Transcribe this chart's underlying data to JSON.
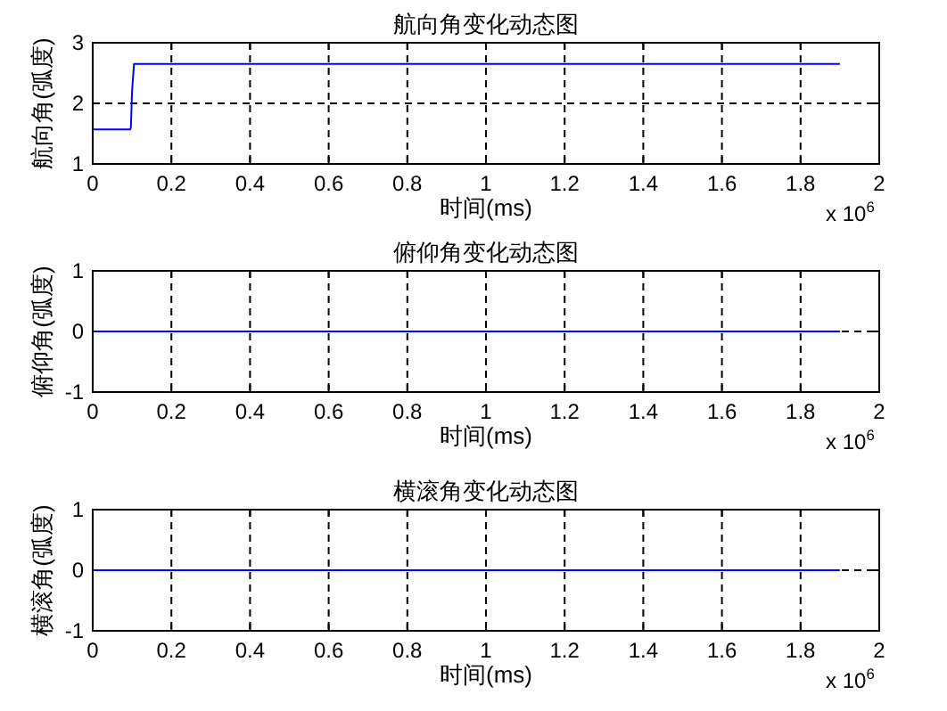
{
  "chart_data": [
    {
      "type": "line",
      "title": "航向角变化动态图",
      "xlabel": "时间(ms)",
      "ylabel": "航向角(弧度)",
      "annotations": [
        "x 10$^{6}$"
      ],
      "xlim": [
        0,
        2
      ],
      "xticks": [
        0,
        0.2,
        0.4,
        0.6,
        0.8,
        1,
        1.2,
        1.4,
        1.6,
        1.8,
        2
      ],
      "ylim": [
        1,
        3
      ],
      "yticks": [
        1,
        2,
        3
      ],
      "grid": true,
      "series": [
        {
          "color": "#0000ff",
          "x": [
            0,
            0.095,
            0.097,
            0.1,
            0.105,
            1.9
          ],
          "values": [
            1.57,
            1.57,
            1.6,
            2.2,
            2.65,
            2.65
          ]
        }
      ]
    },
    {
      "type": "line",
      "title": "俯仰角变化动态图",
      "xlabel": "时间(ms)",
      "ylabel": "俯仰角(弧度)",
      "annotations": [
        "x 10$^{6}$"
      ],
      "xlim": [
        0,
        2
      ],
      "xticks": [
        0,
        0.2,
        0.4,
        0.6,
        0.8,
        1,
        1.2,
        1.4,
        1.6,
        1.8,
        2
      ],
      "ylim": [
        -1,
        1
      ],
      "yticks": [
        -1,
        0,
        1
      ],
      "grid": true,
      "series": [
        {
          "color": "#0000ff",
          "x": [
            0,
            1.9
          ],
          "values": [
            0,
            0
          ]
        }
      ]
    },
    {
      "type": "line",
      "title": "横滚角变化动态图",
      "xlabel": "时间(ms)",
      "ylabel": "横滚角(弧度)",
      "annotations": [
        "x 10$^{6}$"
      ],
      "xlim": [
        0,
        2
      ],
      "xticks": [
        0,
        0.2,
        0.4,
        0.6,
        0.8,
        1,
        1.2,
        1.4,
        1.6,
        1.8,
        2
      ],
      "ylim": [
        -1,
        1
      ],
      "yticks": [
        -1,
        0,
        1
      ],
      "grid": true,
      "series": [
        {
          "color": "#0000ff",
          "x": [
            0,
            1.9
          ],
          "values": [
            0,
            0
          ]
        }
      ]
    }
  ]
}
